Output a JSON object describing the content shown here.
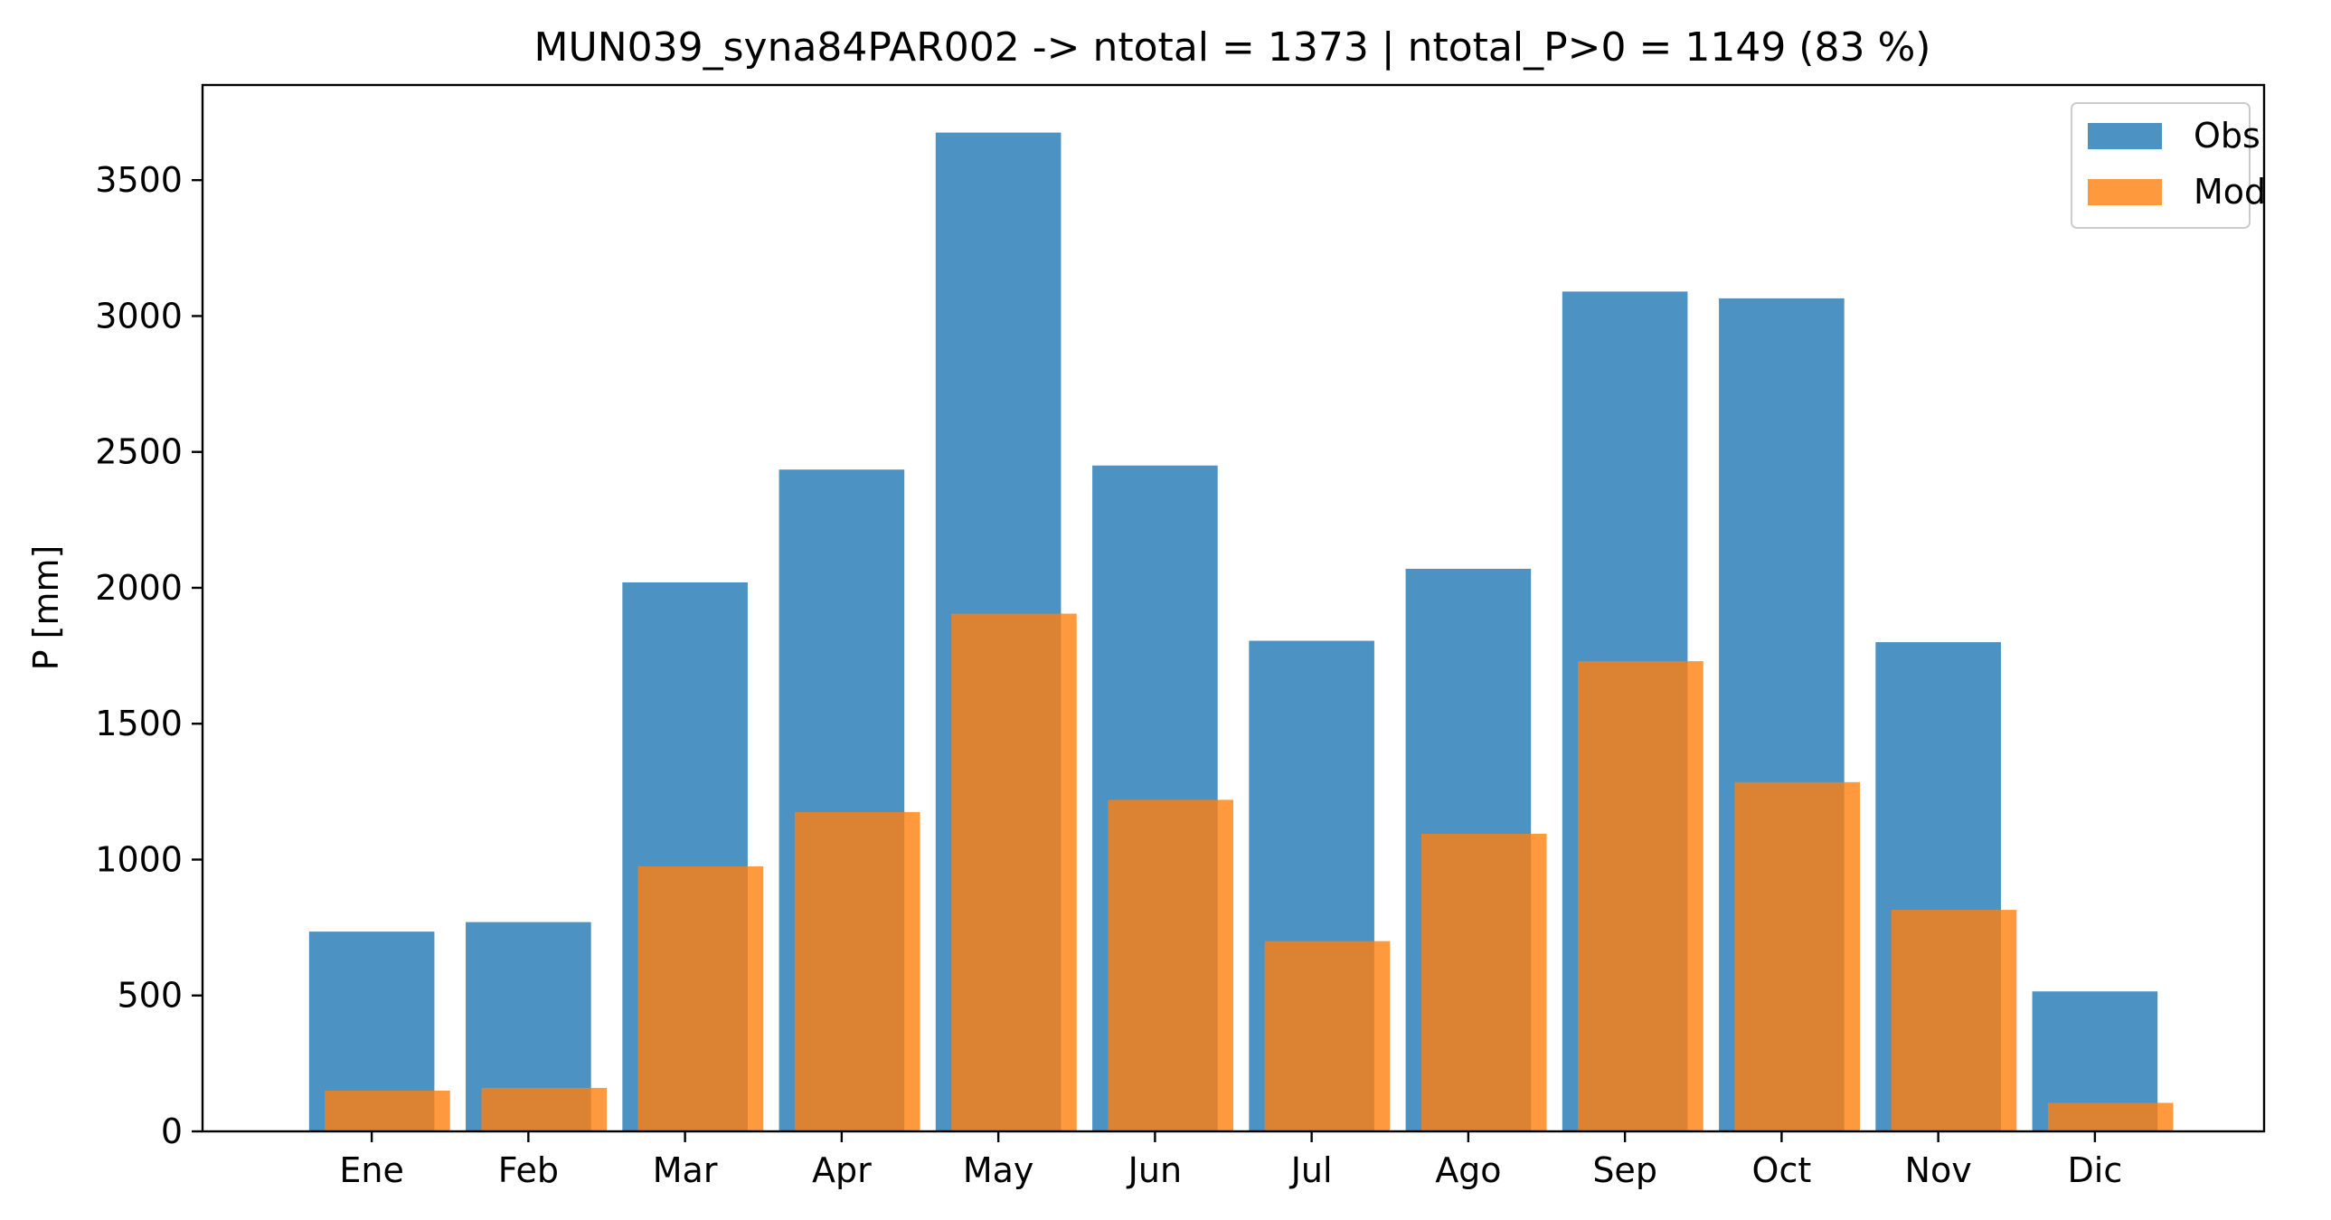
{
  "chart_data": {
    "type": "bar",
    "title": "MUN039_syna84PAR002 -> ntotal = 1373 | ntotal_P>0 = 1149 (83 %)",
    "xlabel": "",
    "ylabel": "P [mm]",
    "ylim": [
      0,
      3850
    ],
    "yticks": [
      0,
      500,
      1000,
      1500,
      2000,
      2500,
      3000,
      3500
    ],
    "grid": false,
    "legend_position": "top-right",
    "categories": [
      "Ene",
      "Feb",
      "Mar",
      "Apr",
      "May",
      "Jun",
      "Jul",
      "Ago",
      "Sep",
      "Oct",
      "Nov",
      "Dic"
    ],
    "series": [
      {
        "name": "Obs",
        "color": "#1f77b4",
        "values": [
          735,
          770,
          2020,
          2435,
          3675,
          2450,
          1805,
          2070,
          3090,
          3065,
          1800,
          515
        ]
      },
      {
        "name": "Mod",
        "color": "#ff7f0e",
        "values": [
          150,
          160,
          975,
          1175,
          1905,
          1220,
          700,
          1095,
          1730,
          1285,
          815,
          105
        ]
      }
    ]
  }
}
